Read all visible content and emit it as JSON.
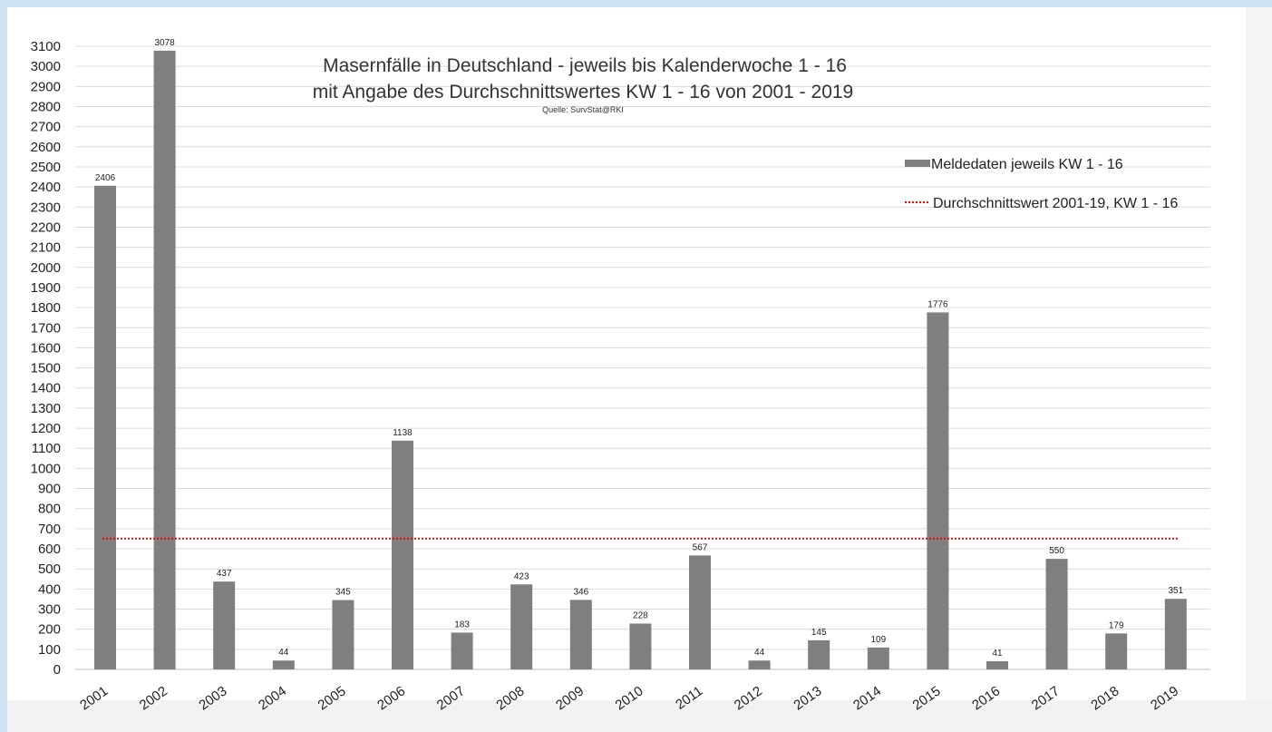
{
  "chart_data": {
    "type": "bar",
    "title": "Masernfälle in Deutschland - jeweils bis Kalenderwoche 1 - 16",
    "subtitle": "mit Angabe des Durchschnittswertes KW 1 - 16 von 2001 - 2019",
    "source": "Quelle: SurvStat@RKI",
    "categories": [
      "2001",
      "2002",
      "2003",
      "2004",
      "2005",
      "2006",
      "2007",
      "2008",
      "2009",
      "2010",
      "2011",
      "2012",
      "2013",
      "2014",
      "2015",
      "2016",
      "2017",
      "2018",
      "2019"
    ],
    "series": [
      {
        "name": "Meldedaten jeweils KW 1 - 16",
        "color": "#7f7f7f",
        "values": [
          2406,
          3078,
          437,
          44,
          345,
          1138,
          183,
          423,
          346,
          228,
          567,
          44,
          145,
          109,
          1776,
          41,
          550,
          179,
          351
        ]
      }
    ],
    "reference_line": {
      "name": "Durchschnittswert 2001-19, KW 1 - 16",
      "value": 651,
      "color": "#ff0000",
      "style": "dotted"
    },
    "ylim": [
      0,
      3100
    ],
    "ytick_step": 100,
    "xlabel": "",
    "ylabel": "",
    "grid": true,
    "legend_position": "right"
  }
}
